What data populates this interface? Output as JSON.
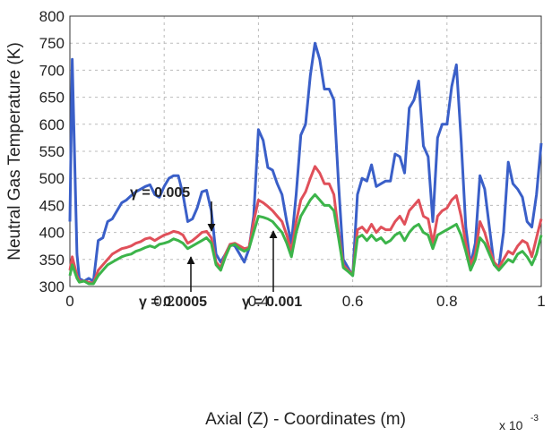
{
  "chart_data": {
    "type": "line",
    "x_label": "Axial (Z) - Coordinates (m)",
    "y_label": "Neutral Gas Temperature (K)",
    "x_scale_base": "x 10",
    "x_scale_exponent": "-3",
    "xlim": [
      0,
      1
    ],
    "ylim": [
      300,
      800
    ],
    "xticks": [
      0,
      0.2,
      0.4,
      0.6,
      0.8,
      1
    ],
    "yticks": [
      300,
      350,
      400,
      450,
      500,
      550,
      600,
      650,
      700,
      750,
      800
    ],
    "grid": true,
    "annotations": [
      "γ = 0.005",
      "γ = 0.0005",
      "γ = 0.001"
    ],
    "x": [
      0,
      0.005,
      0.015,
      0.02,
      0.03,
      0.04,
      0.05,
      0.06,
      0.07,
      0.08,
      0.09,
      0.1,
      0.11,
      0.12,
      0.13,
      0.14,
      0.15,
      0.16,
      0.17,
      0.18,
      0.19,
      0.2,
      0.21,
      0.22,
      0.23,
      0.24,
      0.25,
      0.26,
      0.27,
      0.28,
      0.29,
      0.3,
      0.31,
      0.32,
      0.33,
      0.34,
      0.35,
      0.36,
      0.37,
      0.38,
      0.39,
      0.4,
      0.41,
      0.42,
      0.43,
      0.44,
      0.45,
      0.46,
      0.47,
      0.48,
      0.49,
      0.5,
      0.51,
      0.52,
      0.53,
      0.54,
      0.55,
      0.56,
      0.57,
      0.58,
      0.59,
      0.6,
      0.61,
      0.62,
      0.63,
      0.64,
      0.65,
      0.66,
      0.67,
      0.68,
      0.69,
      0.7,
      0.71,
      0.72,
      0.73,
      0.74,
      0.75,
      0.76,
      0.77,
      0.78,
      0.79,
      0.8,
      0.81,
      0.82,
      0.83,
      0.84,
      0.85,
      0.86,
      0.87,
      0.88,
      0.89,
      0.9,
      0.91,
      0.92,
      0.93,
      0.94,
      0.95,
      0.96,
      0.97,
      0.98,
      0.99,
      1
    ],
    "series": [
      {
        "color": "#3a5fc8",
        "values": [
          420,
          720,
          360,
          315,
          310,
          315,
          310,
          385,
          390,
          420,
          425,
          440,
          455,
          460,
          468,
          475,
          480,
          485,
          488,
          470,
          465,
          485,
          500,
          505,
          505,
          470,
          420,
          425,
          445,
          475,
          478,
          440,
          360,
          345,
          360,
          378,
          375,
          360,
          345,
          370,
          430,
          590,
          570,
          520,
          515,
          490,
          470,
          420,
          380,
          470,
          580,
          600,
          690,
          750,
          720,
          665,
          665,
          645,
          490,
          350,
          335,
          320,
          470,
          500,
          495,
          525,
          485,
          490,
          495,
          495,
          545,
          540,
          510,
          630,
          645,
          680,
          560,
          540,
          420,
          575,
          600,
          600,
          670,
          710,
          570,
          410,
          340,
          380,
          505,
          480,
          410,
          340,
          335,
          400,
          530,
          490,
          480,
          465,
          420,
          410,
          470,
          565
        ]
      },
      {
        "color": "#e0505a",
        "values": [
          330,
          355,
          320,
          310,
          310,
          308,
          306,
          330,
          340,
          350,
          360,
          365,
          370,
          372,
          375,
          380,
          383,
          388,
          390,
          385,
          390,
          395,
          398,
          402,
          400,
          395,
          380,
          385,
          392,
          400,
          402,
          390,
          345,
          335,
          360,
          378,
          380,
          375,
          370,
          372,
          420,
          460,
          455,
          448,
          440,
          430,
          420,
          395,
          365,
          420,
          460,
          475,
          500,
          522,
          510,
          490,
          490,
          470,
          400,
          340,
          330,
          322,
          405,
          410,
          400,
          415,
          400,
          410,
          405,
          405,
          420,
          430,
          415,
          440,
          450,
          460,
          430,
          425,
          380,
          430,
          440,
          445,
          460,
          468,
          430,
          380,
          340,
          360,
          420,
          400,
          370,
          345,
          335,
          350,
          365,
          360,
          375,
          385,
          380,
          355,
          390,
          425
        ]
      },
      {
        "color": "#3cb44a",
        "values": [
          320,
          340,
          315,
          308,
          310,
          305,
          305,
          320,
          330,
          340,
          345,
          350,
          355,
          358,
          360,
          365,
          368,
          372,
          375,
          372,
          378,
          380,
          383,
          388,
          385,
          380,
          370,
          375,
          380,
          385,
          390,
          380,
          340,
          330,
          355,
          375,
          378,
          370,
          365,
          370,
          400,
          430,
          428,
          425,
          420,
          410,
          400,
          380,
          355,
          400,
          430,
          445,
          460,
          470,
          460,
          450,
          450,
          440,
          390,
          335,
          328,
          320,
          390,
          395,
          385,
          395,
          385,
          390,
          380,
          385,
          395,
          400,
          385,
          400,
          410,
          415,
          400,
          395,
          370,
          395,
          400,
          405,
          410,
          415,
          395,
          365,
          330,
          350,
          390,
          380,
          360,
          340,
          330,
          340,
          350,
          345,
          360,
          365,
          355,
          340,
          360,
          395
        ]
      }
    ]
  }
}
